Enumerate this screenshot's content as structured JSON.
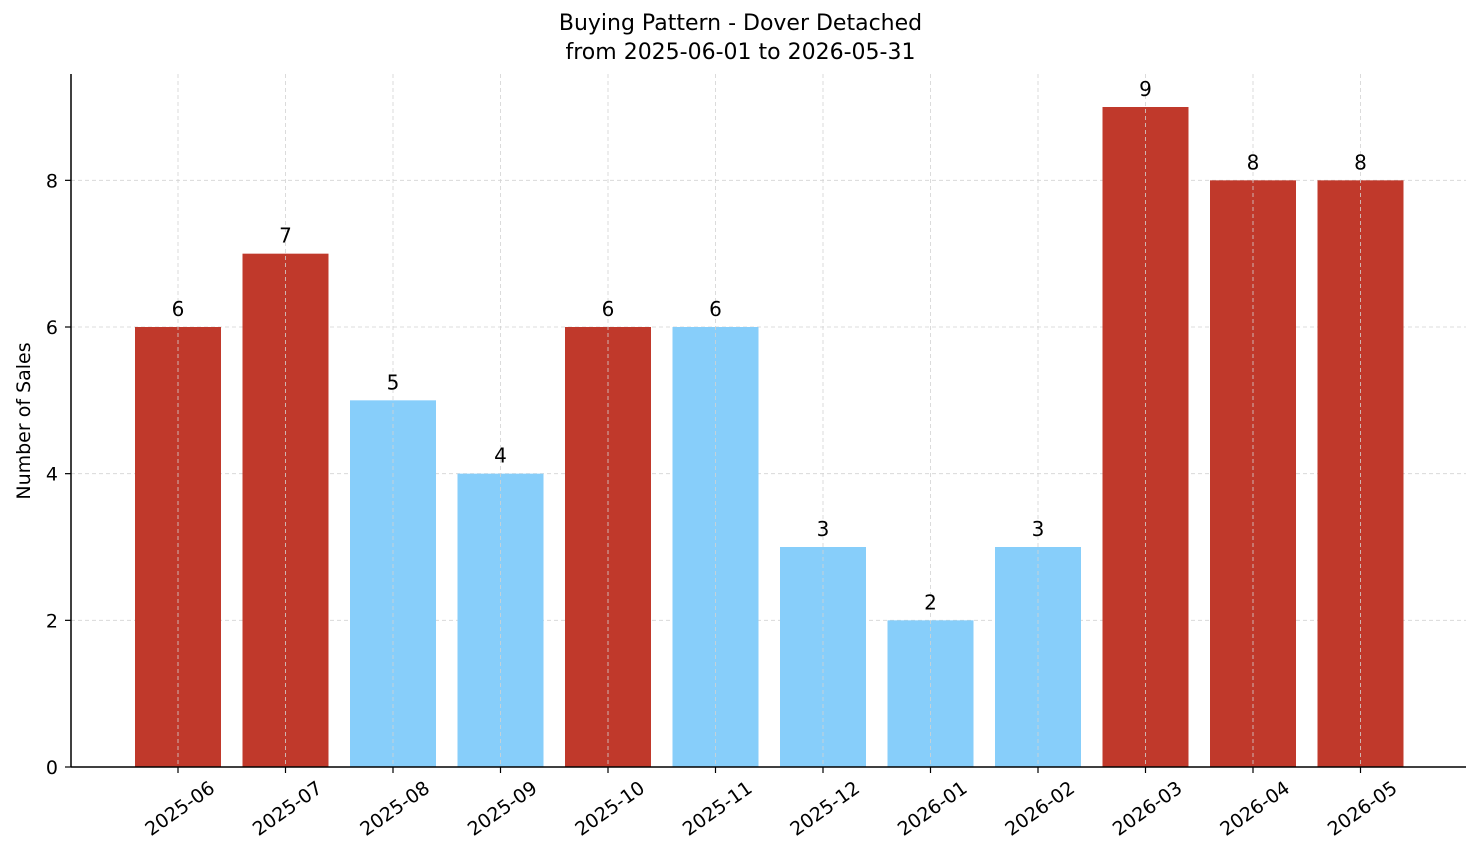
{
  "chart_data": {
    "type": "bar",
    "title": "Buying Pattern - Dover Detached",
    "subtitle": "from 2025-06-01 to 2026-05-31",
    "xlabel": "",
    "ylabel": "Number of Sales",
    "ylim": [
      0,
      9.45
    ],
    "yticks": [
      "0",
      "2",
      "4",
      "6",
      "8"
    ],
    "grid": true,
    "categories": [
      "2025-06",
      "2025-07",
      "2025-08",
      "2025-09",
      "2025-10",
      "2025-11",
      "2025-12",
      "2026-01",
      "2026-02",
      "2026-03",
      "2026-04",
      "2026-05"
    ],
    "values": [
      6,
      7,
      5,
      4,
      6,
      6,
      3,
      2,
      3,
      9,
      8,
      8
    ],
    "highlighted": [
      true,
      true,
      false,
      false,
      true,
      false,
      false,
      false,
      false,
      true,
      true,
      true
    ],
    "colors": {
      "highlight": "#c0392b",
      "normal": "#87cefa",
      "grid": "#d3d3d3",
      "axis": "#000000"
    }
  }
}
